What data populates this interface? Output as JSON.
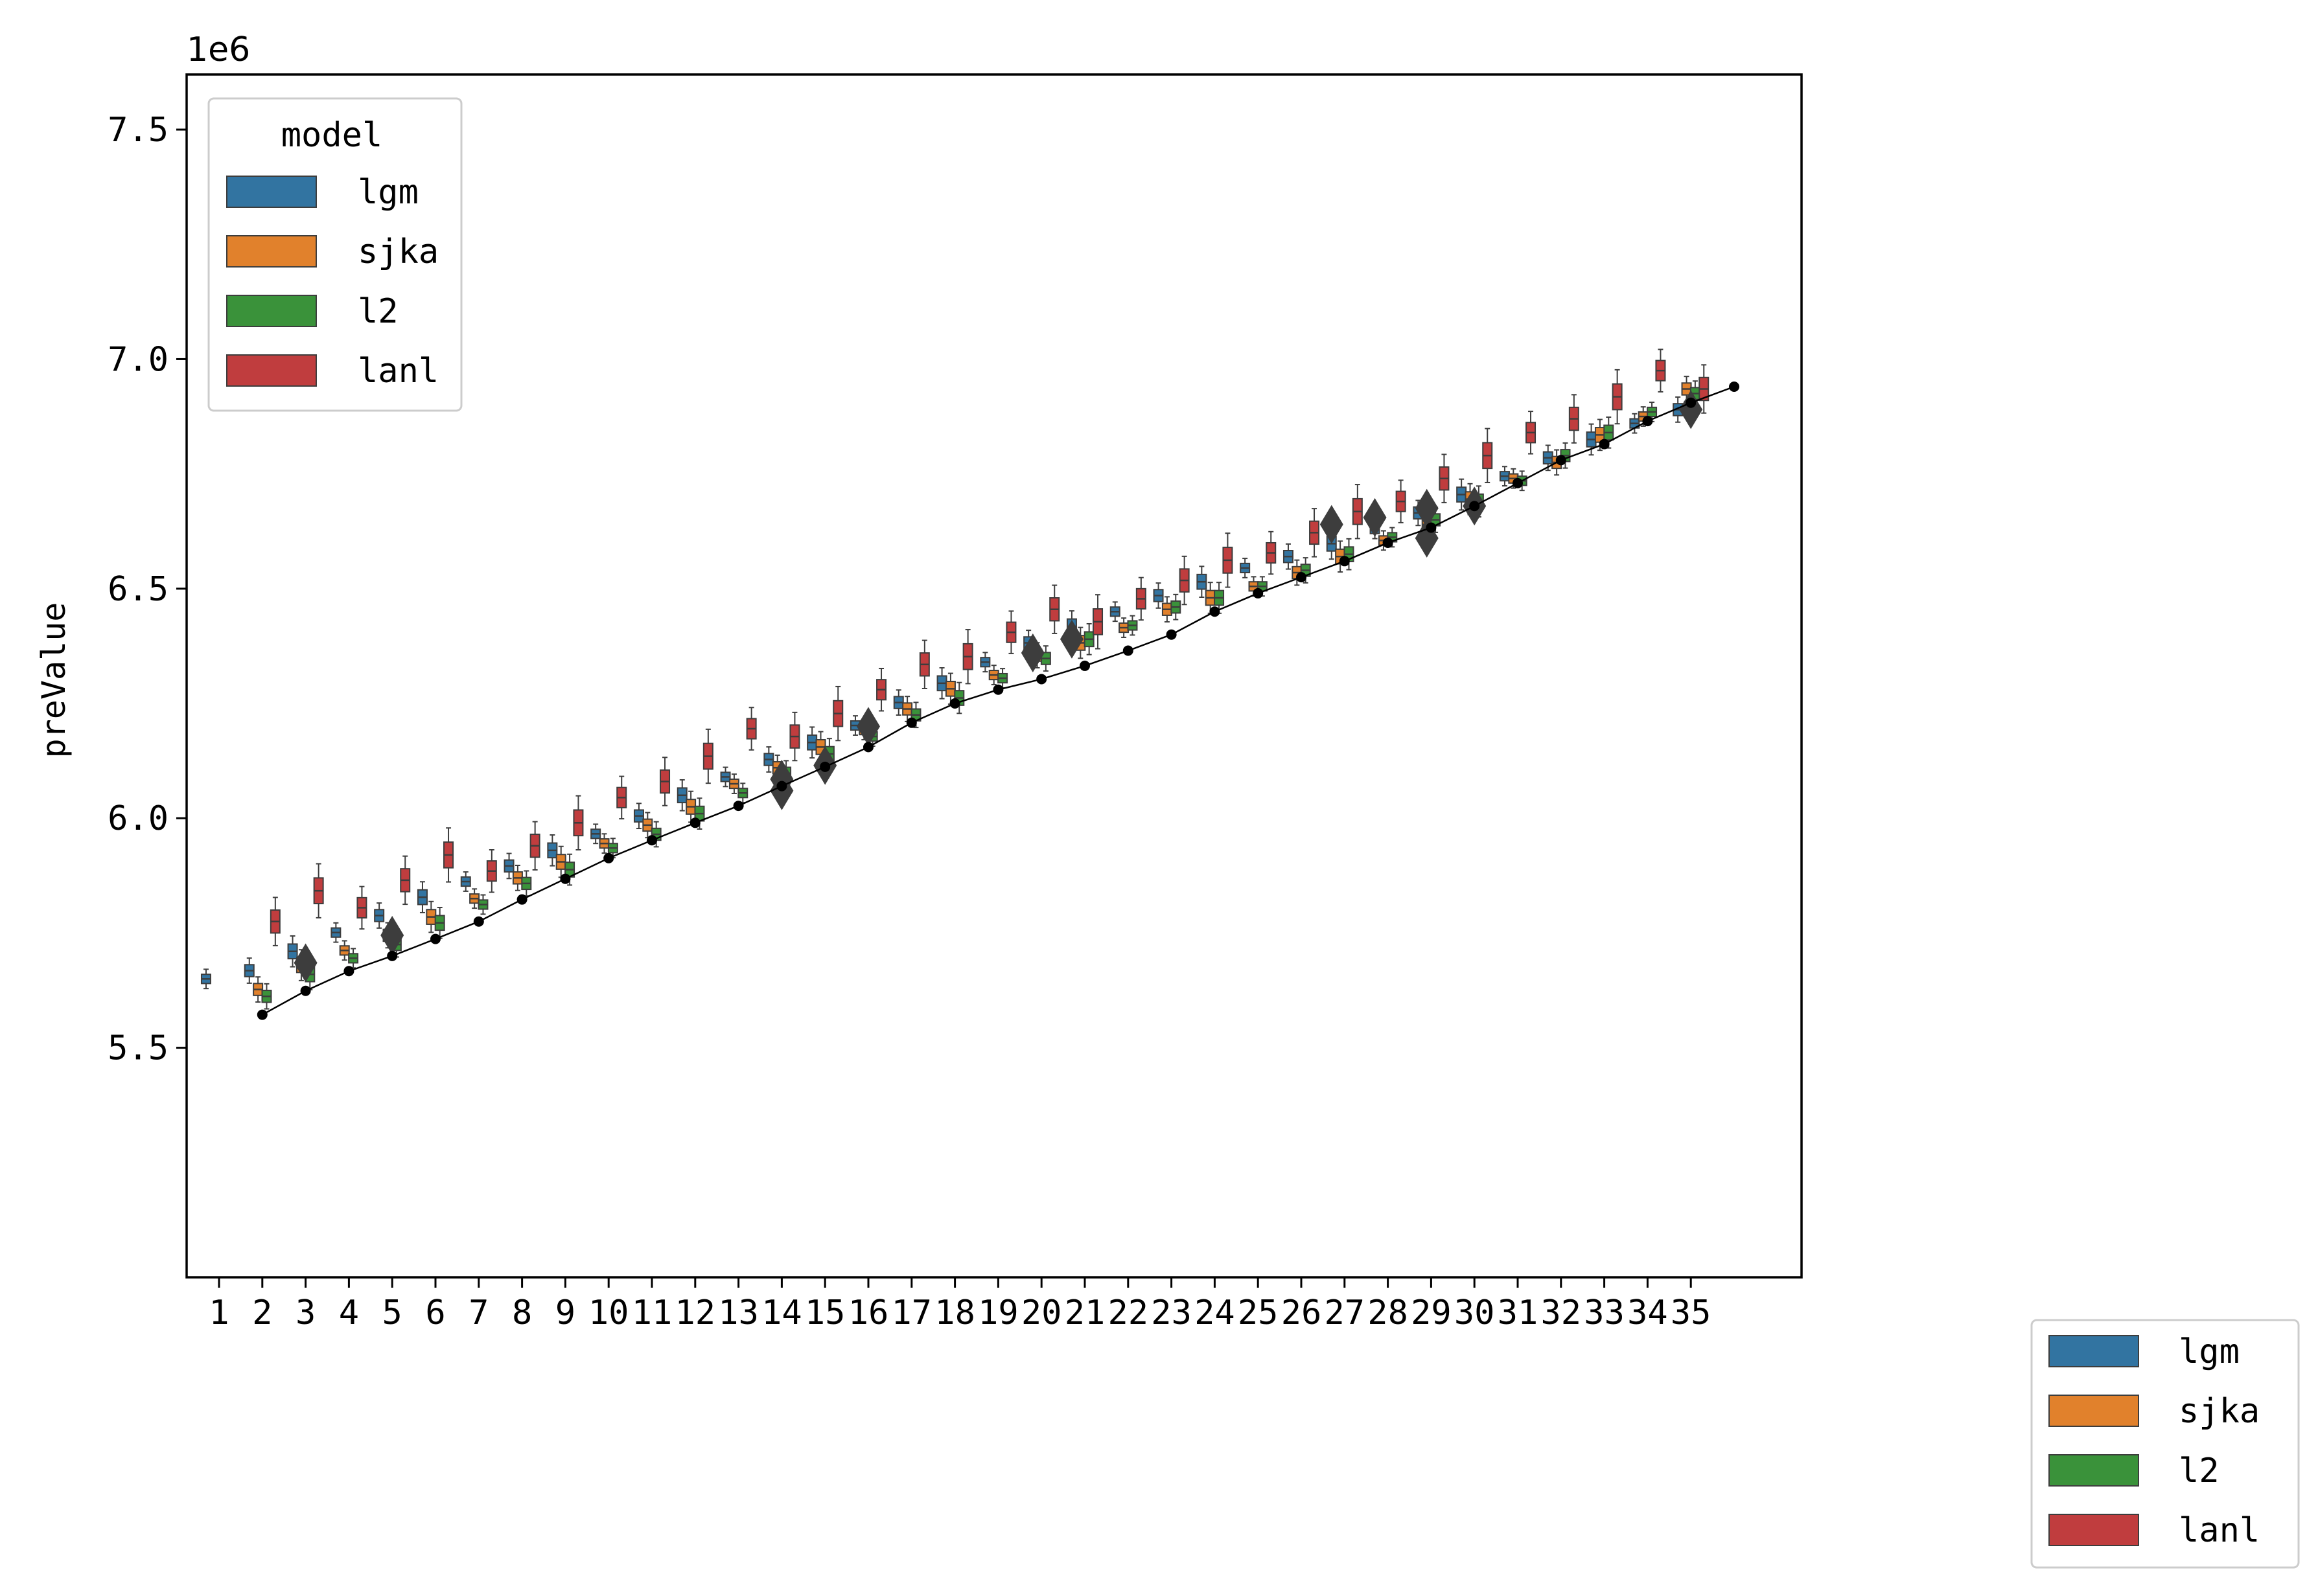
{
  "chart_data": {
    "type": "box",
    "title": "",
    "xlabel": "",
    "ylabel": "preValue",
    "y_offset_label": "1e6",
    "ylim": [
      5.0,
      7.62
    ],
    "yticks": [
      5.5,
      6.0,
      6.5,
      7.0,
      7.5
    ],
    "ytick_labels": [
      "5.5",
      "6.0",
      "6.5",
      "7.0",
      "7.5"
    ],
    "categories": [
      "1",
      "2",
      "3",
      "4",
      "5",
      "6",
      "7",
      "8",
      "9",
      "10",
      "11",
      "12",
      "13",
      "14",
      "15",
      "16",
      "17",
      "18",
      "19",
      "20",
      "21",
      "22",
      "23",
      "24",
      "25",
      "26",
      "27",
      "28",
      "29",
      "30",
      "31",
      "32",
      "33",
      "34",
      "35"
    ],
    "legend_title": "model",
    "legend_placement": "upper-left",
    "second_legend_placement": "outside-lower-right",
    "series_names": [
      "lgm",
      "sjka",
      "l2",
      "lanl"
    ],
    "series_colors": [
      "#3274a1",
      "#e1812c",
      "#3a923a",
      "#c03d3e"
    ],
    "series": [
      {
        "name": "lgm",
        "color": "#3274a1",
        "medians": [
          5.65,
          5.668,
          5.71,
          5.751,
          5.788,
          5.828,
          5.862,
          5.896,
          5.93,
          5.966,
          6.005,
          6.05,
          6.09,
          6.128,
          6.165,
          6.202,
          6.252,
          6.294,
          6.34,
          6.382,
          6.418,
          6.45,
          6.485,
          6.515,
          6.545,
          6.57,
          6.598,
          6.63,
          6.665,
          6.705,
          6.745,
          6.785,
          6.825,
          6.86,
          6.89
        ]
      },
      {
        "name": "sjka",
        "color": "#e1812c",
        "medians": [
          null,
          5.627,
          5.68,
          5.712,
          5.745,
          5.785,
          5.825,
          5.87,
          5.905,
          5.945,
          5.985,
          6.025,
          6.075,
          6.11,
          6.155,
          6.192,
          6.238,
          6.282,
          6.312,
          6.355,
          6.382,
          6.415,
          6.455,
          6.48,
          6.505,
          6.535,
          6.57,
          6.605,
          6.64,
          6.695,
          6.74,
          6.775,
          6.835,
          6.875,
          6.935
        ]
      },
      {
        "name": "l2",
        "color": "#3a923a",
        "medians": [
          null,
          5.612,
          5.66,
          5.695,
          5.725,
          5.772,
          5.812,
          5.858,
          5.888,
          5.935,
          5.965,
          6.01,
          6.055,
          6.098,
          6.14,
          6.178,
          6.225,
          6.262,
          6.305,
          6.348,
          6.39,
          6.42,
          6.46,
          6.48,
          6.505,
          6.54,
          6.575,
          6.612,
          6.65,
          6.69,
          6.735,
          6.79,
          6.84,
          6.885,
          6.925
        ]
      },
      {
        "name": "lanl",
        "color": "#c03d3e",
        "medians": [
          null,
          5.775,
          5.842,
          5.805,
          5.865,
          5.92,
          5.885,
          5.94,
          5.99,
          6.045,
          6.08,
          6.135,
          6.195,
          6.178,
          6.228,
          6.28,
          6.335,
          6.352,
          6.405,
          6.455,
          6.428,
          6.478,
          6.518,
          6.562,
          6.578,
          6.622,
          6.668,
          6.69,
          6.74,
          6.79,
          6.84,
          6.87,
          6.918,
          6.975,
          6.935
        ]
      }
    ],
    "actual_line": {
      "x": [
        2,
        3,
        4,
        5,
        6,
        7,
        8,
        9,
        10,
        11,
        12,
        13,
        14,
        15,
        16,
        17,
        18,
        19,
        20,
        21,
        22,
        23,
        24,
        25,
        26,
        27,
        28,
        29,
        30,
        31,
        32,
        33,
        34,
        35,
        36
      ],
      "y": [
        5.572,
        5.624,
        5.667,
        5.7,
        5.737,
        5.775,
        5.823,
        5.868,
        5.913,
        5.952,
        5.99,
        6.027,
        6.07,
        6.112,
        6.155,
        6.208,
        6.25,
        6.28,
        6.303,
        6.332,
        6.365,
        6.4,
        6.45,
        6.49,
        6.525,
        6.56,
        6.6,
        6.633,
        6.68,
        6.73,
        6.78,
        6.815,
        6.865,
        6.905,
        6.94
      ]
    },
    "outliers": [
      {
        "x": 3.0,
        "y": 5.685
      },
      {
        "x": 5.0,
        "y": 5.745
      },
      {
        "x": 14.0,
        "y": 6.085
      },
      {
        "x": 14.0,
        "y": 6.06
      },
      {
        "x": 15.0,
        "y": 6.115
      },
      {
        "x": 16.0,
        "y": 6.2
      },
      {
        "x": 19.8,
        "y": 6.36
      },
      {
        "x": 20.7,
        "y": 6.39
      },
      {
        "x": 26.7,
        "y": 6.64
      },
      {
        "x": 27.7,
        "y": 6.655
      },
      {
        "x": 28.9,
        "y": 6.675
      },
      {
        "x": 28.9,
        "y": 6.61
      },
      {
        "x": 30.0,
        "y": 6.68
      },
      {
        "x": 35.0,
        "y": 6.89
      }
    ]
  }
}
